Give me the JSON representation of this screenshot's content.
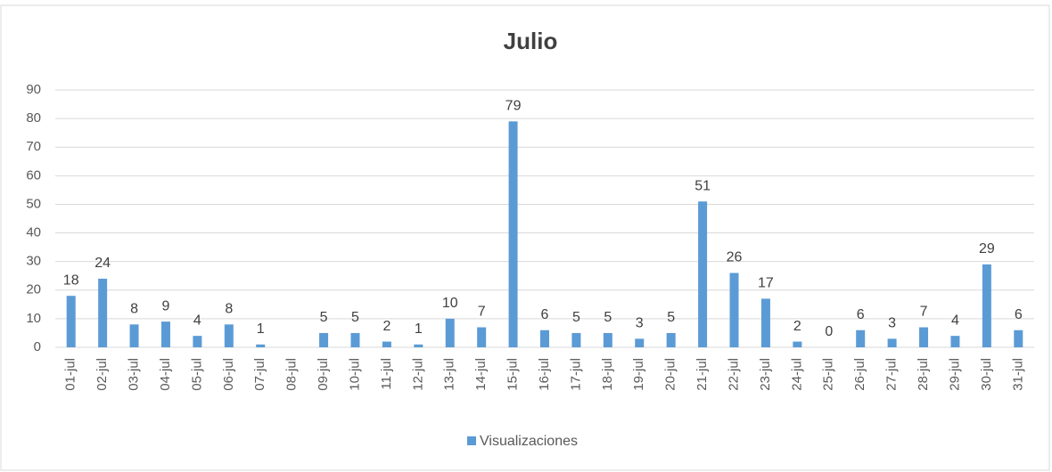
{
  "chart_data": {
    "type": "bar",
    "title": "Julio",
    "categories": [
      "01-jul",
      "02-jul",
      "03-jul",
      "04-jul",
      "05-jul",
      "06-jul",
      "07-jul",
      "08-jul",
      "09-jul",
      "10-jul",
      "11-jul",
      "12-jul",
      "13-jul",
      "14-jul",
      "15-jul",
      "16-jul",
      "17-jul",
      "18-jul",
      "19-jul",
      "20-jul",
      "21-jul",
      "22-jul",
      "23-jul",
      "24-jul",
      "25-jul",
      "26-jul",
      "27-jul",
      "28-jul",
      "29-jul",
      "30-jul",
      "31-jul"
    ],
    "series": [
      {
        "name": "Visualizaciones",
        "color": "#5b9bd5",
        "values": [
          18,
          24,
          8,
          9,
          4,
          8,
          1,
          null,
          5,
          5,
          2,
          1,
          10,
          7,
          79,
          6,
          5,
          5,
          3,
          5,
          51,
          26,
          17,
          2,
          0,
          6,
          3,
          7,
          4,
          29,
          6
        ]
      }
    ],
    "ylim": [
      0,
      90
    ],
    "yticks": [
      0,
      10,
      20,
      30,
      40,
      50,
      60,
      70,
      80,
      90
    ],
    "grid": true,
    "legend": "bottom"
  }
}
